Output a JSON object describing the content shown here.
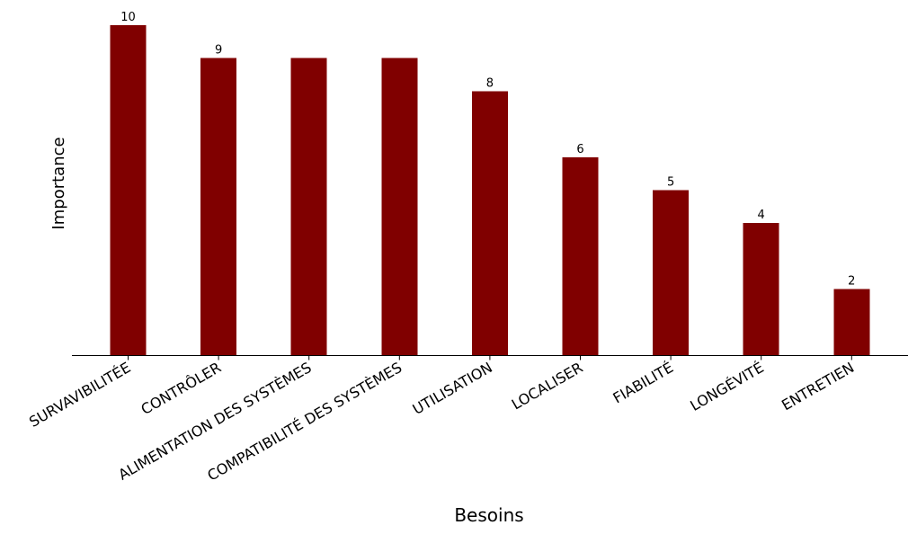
{
  "chart_data": {
    "type": "bar",
    "categories": [
      "SURVAVIBILITÉE",
      "CONTRÔLER",
      "ALIMENTATION DES SYSTÈMES",
      "COMPATIBILITÉ DES SYSTÈMES",
      "UTILISATION",
      "LOCALISER",
      "FIABILITÉ",
      "LONGÉVITÉ",
      "ENTRETIEN"
    ],
    "values": [
      10,
      9,
      9,
      9,
      8,
      6,
      5,
      4,
      2
    ],
    "data_labels": [
      "10",
      "9",
      "",
      "",
      "8",
      "6",
      "5",
      "4",
      "2"
    ],
    "title": "",
    "xlabel": "Besoins",
    "ylabel": "Importance",
    "ylim": [
      0,
      10
    ],
    "grid": false,
    "colors": {
      "bar": "#800000",
      "axis": "#000000"
    }
  }
}
